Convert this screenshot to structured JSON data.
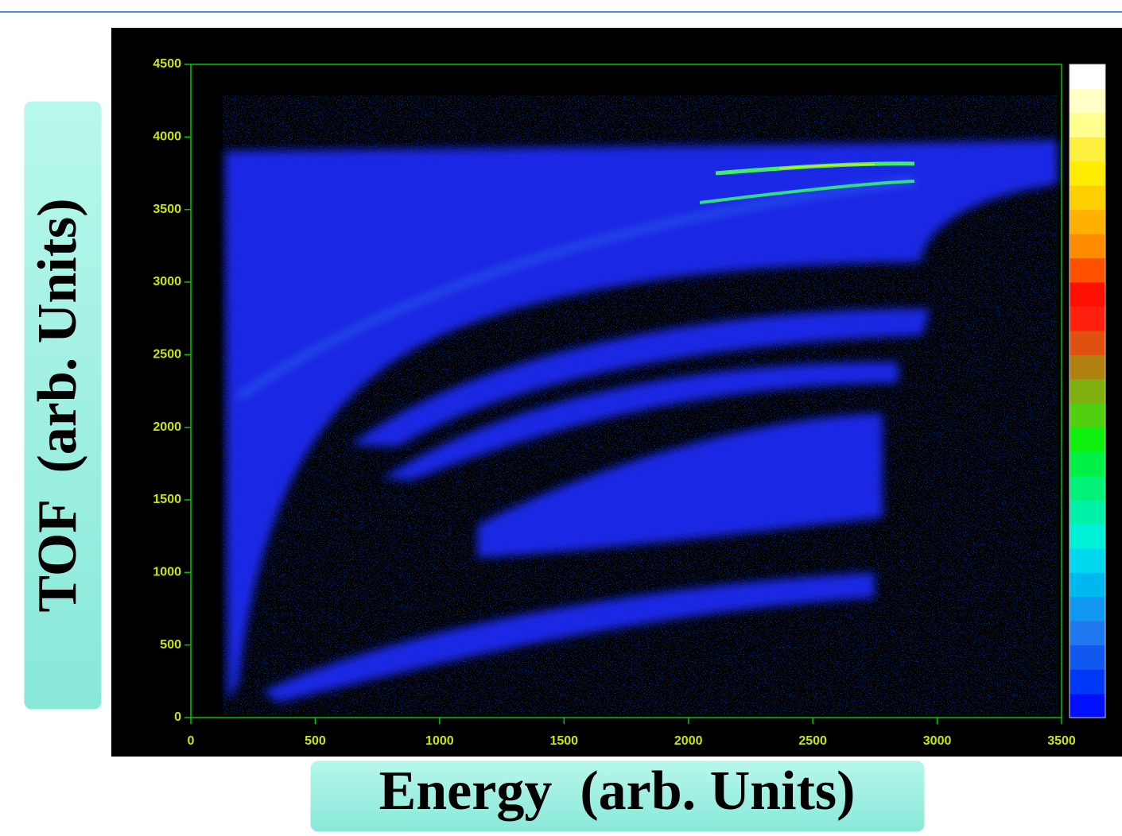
{
  "chart_data": {
    "type": "heatmap",
    "xlabel": "Energy  (arb. Units)",
    "ylabel": "TOF  (arb. Units)",
    "xlim": [
      0,
      3500
    ],
    "ylim": [
      0,
      4500
    ],
    "xticks": [
      0,
      500,
      1000,
      1500,
      2000,
      2500,
      3000,
      3500
    ],
    "yticks": [
      0,
      500,
      1000,
      1500,
      2000,
      2500,
      3000,
      3500,
      4000,
      4500
    ],
    "colorbar": [
      "#0010ff",
      "#0038f8",
      "#1058f0",
      "#2078f0",
      "#1098f0",
      "#00b8f0",
      "#00d8f0",
      "#00f0d8",
      "#00f0a8",
      "#00f078",
      "#00f048",
      "#10f010",
      "#50d010",
      "#80b010",
      "#b08010",
      "#e05010",
      "#ff2010",
      "#ff1000",
      "#ff5000",
      "#ff8c00",
      "#ffb000",
      "#ffd000",
      "#ffec00",
      "#fff040",
      "#ffff90",
      "#ffffc8",
      "#ffffff"
    ]
  }
}
